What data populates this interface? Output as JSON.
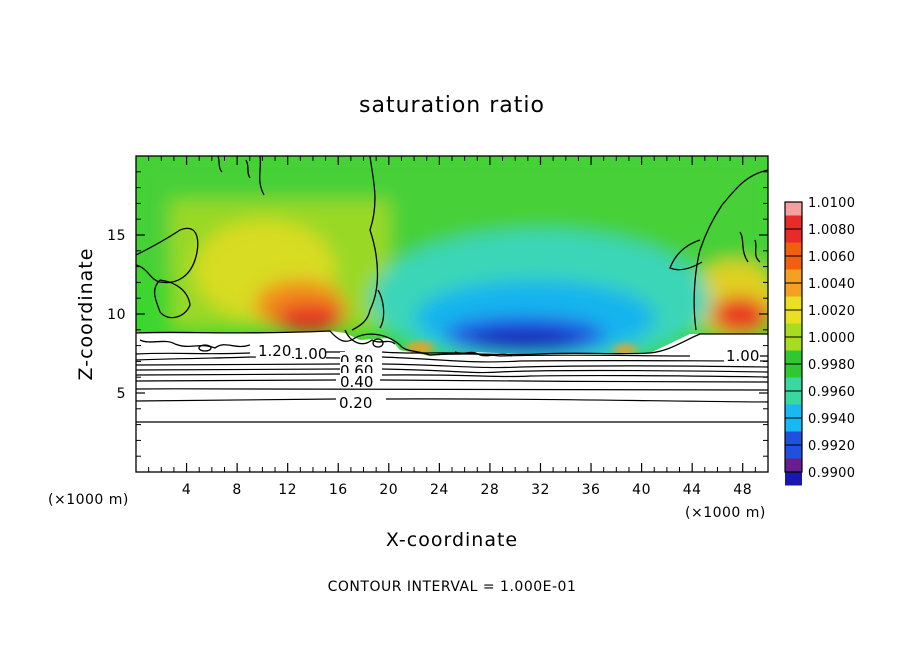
{
  "chart_data": {
    "type": "heatmap",
    "title": "saturation ratio",
    "xlabel": "X-coordinate",
    "ylabel": "Z-coordinate",
    "x_unit_left": "(×1000 m)",
    "x_unit_right": "(×1000 m)",
    "xlim": [
      0,
      50
    ],
    "ylim": [
      0,
      20
    ],
    "x_ticks": [
      4,
      8,
      12,
      16,
      20,
      24,
      28,
      32,
      36,
      40,
      44,
      48
    ],
    "y_ticks": [
      5,
      10,
      15
    ],
    "x_tick_labels": [
      "4",
      "8",
      "12",
      "16",
      "20",
      "24",
      "28",
      "32",
      "36",
      "40",
      "44",
      "48"
    ],
    "y_tick_labels": [
      "5",
      "10",
      "15"
    ],
    "colorbar": {
      "levels": [
        "1.0100",
        "1.0080",
        "1.0060",
        "1.0040",
        "1.0020",
        "1.0000",
        "0.9980",
        "0.9960",
        "0.9940",
        "0.9920",
        "0.9900"
      ],
      "colors": [
        "#f4a0a0",
        "#e82a2a",
        "#f06010",
        "#f5a020",
        "#e8e020",
        "#a8dc20",
        "#30c830",
        "#38d8a0",
        "#18b8f0",
        "#2050e0",
        "#1818b0",
        "#6a1e8e"
      ]
    },
    "contour_labels": [
      "1.20",
      "1.00",
      "0.80",
      "0.60",
      "0.40",
      "0.20",
      "1.00"
    ],
    "contour_levels_below_cloud": [
      0.2,
      0.3,
      0.4,
      0.5,
      0.6,
      0.7,
      0.8,
      0.9,
      1.0
    ],
    "features": [
      {
        "region": "warm",
        "x": [
          10,
          17
        ],
        "z": [
          9,
          12
        ],
        "value": 1.008
      },
      {
        "region": "warm",
        "x": [
          46,
          50
        ],
        "z": [
          9,
          12
        ],
        "value": 1.008
      },
      {
        "region": "warm",
        "x": [
          8,
          15
        ],
        "z": [
          12,
          17
        ],
        "value": 1.003
      },
      {
        "region": "cold",
        "x": [
          24,
          39
        ],
        "z": [
          7.5,
          10
        ],
        "value": 0.992
      },
      {
        "region": "cold",
        "x": [
          20,
          40
        ],
        "z": [
          9,
          14
        ],
        "value": 0.996
      }
    ],
    "grid": false,
    "legend": "colorbar-right",
    "footer": "CONTOUR INTERVAL = 1.000E-01"
  }
}
